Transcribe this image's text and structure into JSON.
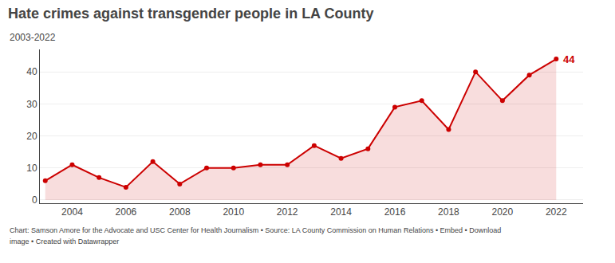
{
  "chart_data": {
    "type": "area",
    "title": "Hate crimes against transgender people in LA County",
    "subtitle": "2003-2022",
    "x": [
      2003,
      2004,
      2005,
      2006,
      2007,
      2008,
      2009,
      2010,
      2011,
      2012,
      2013,
      2014,
      2015,
      2016,
      2017,
      2018,
      2019,
      2020,
      2021,
      2022
    ],
    "values": [
      6,
      11,
      7,
      4,
      12,
      5,
      10,
      10,
      11,
      11,
      17,
      13,
      16,
      29,
      31,
      22,
      40,
      31,
      39,
      44
    ],
    "color": "#cc0000",
    "marker": "circle",
    "annotations": [
      {
        "x": 2022,
        "y": 44,
        "text": "44"
      }
    ],
    "xlim": [
      2002.8,
      2023.0
    ],
    "xticks": [
      2004,
      2006,
      2008,
      2010,
      2012,
      2014,
      2016,
      2018,
      2020,
      2022
    ],
    "ylim": [
      -1,
      47
    ],
    "yticks": [
      0,
      10,
      20,
      30,
      40
    ],
    "grid": "y",
    "footer": [
      "Chart: Samson Amore for the Advocate and USC Center for Health Journalism • Source: LA County Commission on Human Relations • Embed • Download",
      "image • Created with Datawrapper"
    ]
  }
}
